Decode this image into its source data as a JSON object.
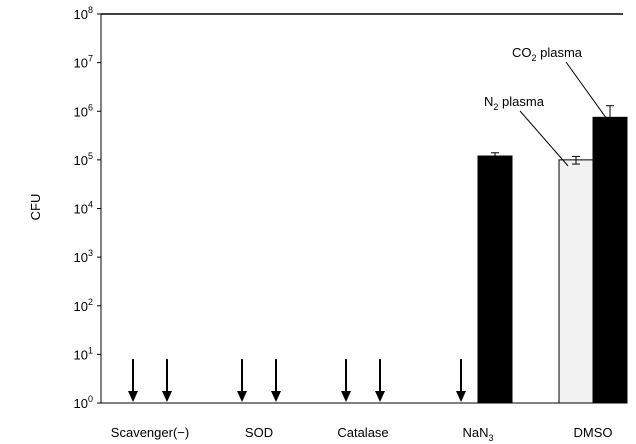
{
  "chart_data": {
    "type": "bar",
    "scale": "log",
    "ylim": [
      1,
      100000000
    ],
    "ylabel": "CFU",
    "xlabel": "",
    "grid": false,
    "y_ticks": [
      {
        "value": 1,
        "base": "10",
        "exp": "0"
      },
      {
        "value": 10,
        "base": "10",
        "exp": "1"
      },
      {
        "value": 100,
        "base": "10",
        "exp": "2"
      },
      {
        "value": 1000,
        "base": "10",
        "exp": "3"
      },
      {
        "value": 10000,
        "base": "10",
        "exp": "4"
      },
      {
        "value": 100000,
        "base": "10",
        "exp": "5"
      },
      {
        "value": 1000000,
        "base": "10",
        "exp": "6"
      },
      {
        "value": 10000000,
        "base": "10",
        "exp": "7"
      },
      {
        "value": 100000000,
        "base": "10",
        "exp": "8"
      }
    ],
    "categories": [
      {
        "main": "Scavenger(−)",
        "sub": ""
      },
      {
        "main": "SOD",
        "sub": ""
      },
      {
        "main": "Catalase",
        "sub": ""
      },
      {
        "main": "NaN",
        "sub": "3"
      },
      {
        "main": "DMSO",
        "sub": ""
      }
    ],
    "series": [
      {
        "label_main": "N",
        "label_sub": "2",
        "label_rest": " plasma",
        "color": "#f2f2f2",
        "values": [
          null,
          null,
          null,
          null,
          100000
        ],
        "errors": [
          null,
          null,
          null,
          null,
          18000
        ]
      },
      {
        "label_main": "CO",
        "label_sub": "2",
        "label_rest": " plasma",
        "color": "#000000",
        "values": [
          null,
          null,
          null,
          120000,
          750000
        ],
        "errors": [
          null,
          null,
          null,
          20000,
          550000
        ]
      }
    ],
    "below_detection_arrows": [
      [
        0,
        0
      ],
      [
        0,
        1
      ],
      [
        1,
        0
      ],
      [
        1,
        1
      ],
      [
        2,
        0
      ],
      [
        2,
        1
      ],
      [
        3,
        0
      ]
    ],
    "arrow_top_value": 8,
    "callouts": [
      {
        "series": 0,
        "category": 4
      },
      {
        "series": 1,
        "category": 4
      }
    ]
  }
}
